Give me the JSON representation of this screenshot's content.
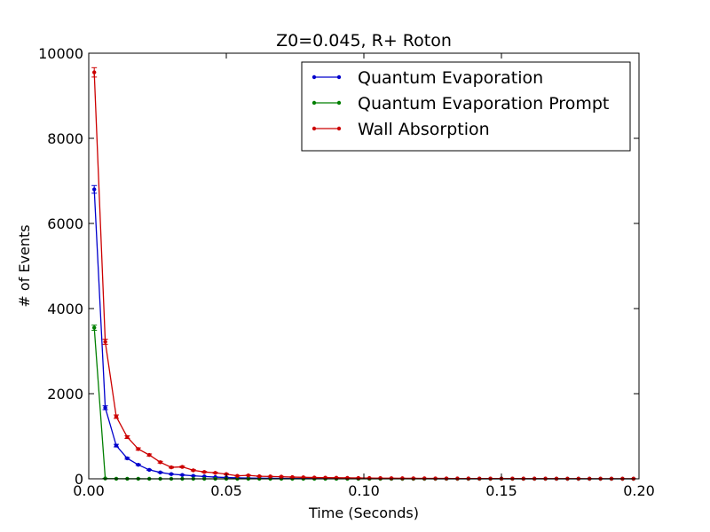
{
  "chart_data": {
    "type": "line",
    "title": "Z0=0.045, R+ Roton",
    "xlabel": "Time (Seconds)",
    "ylabel": "# of Events",
    "xlim": [
      0.0,
      0.2
    ],
    "ylim": [
      0,
      10000
    ],
    "x_ticks": [
      "0.00",
      "0.05",
      "0.10",
      "0.15",
      "0.20"
    ],
    "y_ticks": [
      "0",
      "2000",
      "4000",
      "6000",
      "8000",
      "10000"
    ],
    "grid": false,
    "legend_position": "top-right",
    "x": [
      0.002,
      0.006,
      0.01,
      0.014,
      0.018,
      0.022,
      0.026,
      0.03,
      0.034,
      0.038,
      0.042,
      0.046,
      0.05,
      0.054,
      0.058,
      0.062,
      0.066,
      0.07,
      0.074,
      0.078,
      0.082,
      0.086,
      0.09,
      0.094,
      0.098,
      0.102,
      0.106,
      0.11,
      0.114,
      0.118,
      0.122,
      0.126,
      0.13,
      0.134,
      0.138,
      0.142,
      0.146,
      0.15,
      0.154,
      0.158,
      0.162,
      0.166,
      0.17,
      0.174,
      0.178,
      0.182,
      0.186,
      0.19,
      0.194,
      0.198
    ],
    "series": [
      {
        "name": "Quantum Evaporation",
        "color": "#0000cc",
        "values": [
          6800,
          1670,
          780,
          480,
          330,
          210,
          150,
          110,
          90,
          70,
          55,
          40,
          30,
          22,
          18,
          15,
          12,
          10,
          8,
          7,
          6,
          5,
          4,
          4,
          3,
          3,
          3,
          2,
          2,
          2,
          2,
          1,
          1,
          1,
          1,
          1,
          1,
          1,
          1,
          1,
          1,
          1,
          0,
          0,
          0,
          0,
          0,
          0,
          0,
          0
        ],
        "errors": [
          90,
          45,
          30,
          20,
          15,
          12,
          10,
          8,
          8,
          7,
          6,
          5,
          5,
          4,
          4,
          4,
          3,
          3,
          3,
          3,
          2,
          2,
          2,
          2,
          2,
          2,
          2,
          1,
          1,
          1,
          1,
          1,
          1,
          1,
          1,
          1,
          1,
          1,
          1,
          1,
          1,
          1,
          0,
          0,
          0,
          0,
          0,
          0,
          0,
          0
        ]
      },
      {
        "name": "Quantum Evaporation Prompt",
        "color": "#007f00",
        "values": [
          3550,
          8,
          2,
          1,
          1,
          0,
          0,
          0,
          0,
          0,
          0,
          0,
          0,
          0,
          0,
          0,
          0,
          0,
          0,
          0,
          0,
          0,
          0,
          0,
          0,
          0,
          0,
          0,
          0,
          0,
          0,
          0,
          0,
          0,
          0,
          0,
          0,
          0,
          0,
          0,
          0,
          0,
          0,
          0,
          0,
          0,
          0,
          0,
          0,
          0
        ],
        "errors": [
          60,
          3,
          1,
          1,
          1,
          0,
          0,
          0,
          0,
          0,
          0,
          0,
          0,
          0,
          0,
          0,
          0,
          0,
          0,
          0,
          0,
          0,
          0,
          0,
          0,
          0,
          0,
          0,
          0,
          0,
          0,
          0,
          0,
          0,
          0,
          0,
          0,
          0,
          0,
          0,
          0,
          0,
          0,
          0,
          0,
          0,
          0,
          0,
          0,
          0
        ]
      },
      {
        "name": "Wall Absorption",
        "color": "#cc0000",
        "values": [
          9550,
          3220,
          1460,
          980,
          700,
          560,
          390,
          270,
          280,
          200,
          160,
          140,
          110,
          70,
          80,
          60,
          55,
          50,
          40,
          35,
          30,
          28,
          25,
          22,
          20,
          18,
          16,
          14,
          13,
          12,
          11,
          10,
          9,
          8,
          8,
          7,
          7,
          6,
          6,
          5,
          5,
          5,
          4,
          4,
          4,
          3,
          3,
          3,
          3,
          3
        ],
        "errors": [
          110,
          60,
          40,
          32,
          27,
          24,
          20,
          16,
          17,
          14,
          13,
          12,
          11,
          8,
          9,
          8,
          7,
          7,
          6,
          6,
          5,
          5,
          5,
          5,
          4,
          4,
          4,
          4,
          4,
          3,
          3,
          3,
          3,
          3,
          3,
          3,
          3,
          2,
          2,
          2,
          2,
          2,
          2,
          2,
          2,
          2,
          2,
          2,
          2,
          2
        ]
      }
    ]
  }
}
